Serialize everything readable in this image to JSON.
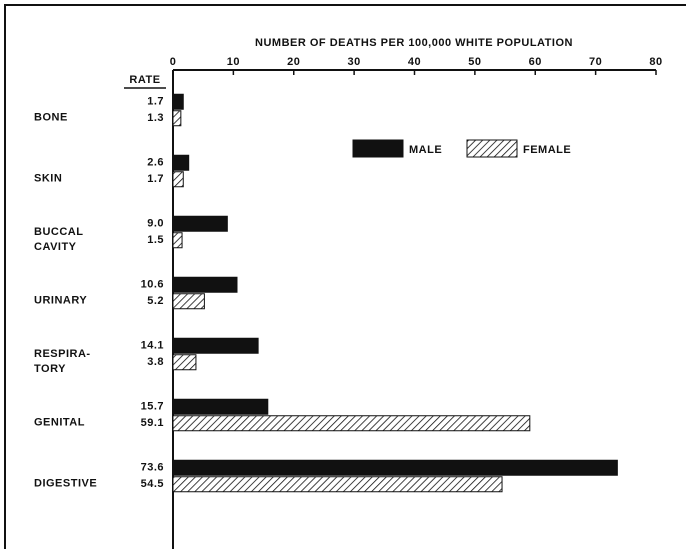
{
  "chart_data": {
    "type": "barh",
    "xlabel": "NUMBER OF DEATHS PER 100,000 WHITE POPULATION",
    "rate_heading": "RATE",
    "categories": [
      [
        "BONE"
      ],
      [
        "SKIN"
      ],
      [
        "BUCCAL",
        "CAVITY"
      ],
      [
        "URINARY"
      ],
      [
        "RESPIRA-",
        "TORY"
      ],
      [
        "GENITAL"
      ],
      [
        "DIGESTIVE"
      ]
    ],
    "series": [
      {
        "name": "MALE",
        "color": "#111111",
        "pattern": "solid",
        "values": [
          1.7,
          2.6,
          9.0,
          10.6,
          14.1,
          15.7,
          73.6
        ],
        "value_labels": [
          "1.7",
          "2.6",
          "9.0",
          "10.6",
          "14.1",
          "15.7",
          "73.6"
        ]
      },
      {
        "name": "FEMALE",
        "color": "#111111",
        "pattern": "hatch",
        "values": [
          1.3,
          1.7,
          1.5,
          5.2,
          3.8,
          59.1,
          54.5
        ],
        "value_labels": [
          "1.3",
          "1.7",
          "1.5",
          "5.2",
          "3.8",
          "59.1",
          "54.5"
        ]
      }
    ],
    "xlim": [
      0,
      80
    ],
    "xticks": [
      0,
      10,
      20,
      30,
      40,
      50,
      60,
      70,
      80
    ],
    "legend": "upper right"
  }
}
